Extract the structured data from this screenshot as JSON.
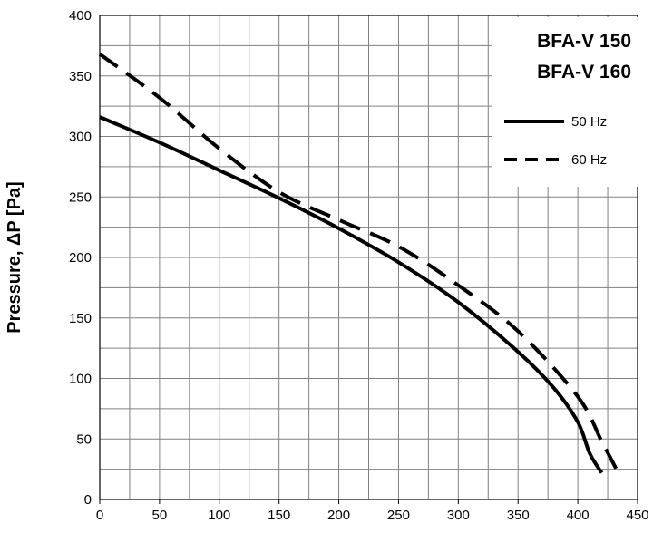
{
  "chart_data": {
    "type": "line",
    "title": "",
    "ylabel": "Pressure, ΔP [Pa]",
    "xlabel": "",
    "xlim": [
      0,
      450
    ],
    "ylim": [
      0,
      400
    ],
    "x_ticks": [
      "0",
      "50",
      "100",
      "150",
      "200",
      "250",
      "300",
      "350",
      "400",
      "450"
    ],
    "y_ticks": [
      "0",
      "50",
      "100",
      "150",
      "200",
      "250",
      "300",
      "350",
      "400"
    ],
    "minor_gridlines": true,
    "grid": true,
    "legend_position": "top-right",
    "models": [
      "BFA-V 150",
      "BFA-V 160"
    ],
    "series": [
      {
        "name": "50 Hz",
        "style": "solid",
        "color": "#000000",
        "x": [
          0,
          50,
          100,
          150,
          200,
          250,
          300,
          350,
          380,
          400,
          410,
          420
        ],
        "y": [
          316,
          295,
          272,
          249,
          224,
          196,
          163,
          122,
          92,
          64,
          38,
          22
        ]
      },
      {
        "name": "60 Hz",
        "style": "dashed",
        "color": "#000000",
        "x": [
          0,
          50,
          100,
          150,
          200,
          250,
          300,
          350,
          400,
          420,
          435
        ],
        "y": [
          368,
          332,
          290,
          254,
          231,
          209,
          177,
          139,
          85,
          48,
          20
        ]
      }
    ]
  }
}
